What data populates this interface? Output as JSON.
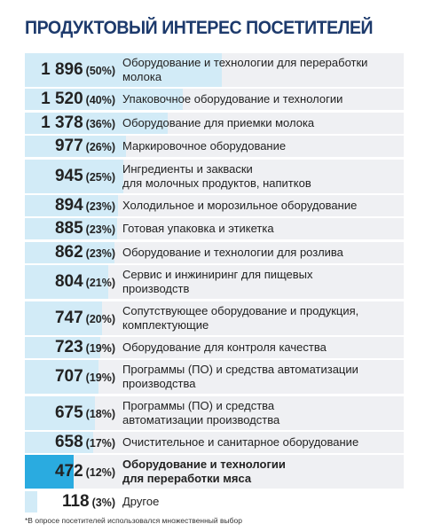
{
  "chart_data": {
    "type": "bar",
    "orientation": "horizontal",
    "title": "ПРОДУКТОВЫЙ ИНТЕРЕС ПОСЕТИТЕЛЕЙ",
    "categories": [
      "Оборудование и технологии для переработки\nмолока",
      "Упаковочное оборудование и технологии",
      "Оборудование для приемки молока",
      "Маркировочное оборудование",
      "Ингредиенты и закваски\nдля молочных продуктов, напитков",
      "Холодильное и морозильное оборудование",
      "Готовая упаковка и этикетка",
      "Оборудование и технологии для розлива",
      "Сервис и инжиниринг для пищевых\nпроизводств",
      "Сопутствующее оборудование и продукция,\nкомплектующие",
      "Оборудование для контроля качества",
      "Программы (ПО) и средства автоматизации\nпроизводства",
      "Программы (ПО) и средства\nавтоматизации производства",
      "Очистительное и санитарное оборудование",
      "Оборудование и технологии\nдля переработки мяса",
      "Другое"
    ],
    "values": [
      1896,
      1520,
      1378,
      977,
      945,
      894,
      885,
      862,
      804,
      747,
      723,
      707,
      675,
      658,
      472,
      118
    ],
    "value_labels": [
      "1 896",
      "1 520",
      "1 378",
      "977",
      "945",
      "894",
      "885",
      "862",
      "804",
      "747",
      "723",
      "707",
      "675",
      "658",
      "472",
      "118"
    ],
    "shares": [
      "(50%)",
      "(40%)",
      "(36%)",
      "(26%)",
      "(25%)",
      "(23%)",
      "(23%)",
      "(23%)",
      "(21%)",
      "(20%)",
      "(19%)",
      "(19%)",
      "(18%)",
      "(17%)",
      "(12%)",
      "(3%)"
    ],
    "color": "#d2ebf7",
    "highlight_color": "#2aabe0",
    "highlight": 14,
    "footnote": "*В опросе посетителей использовался множественный выбор"
  }
}
